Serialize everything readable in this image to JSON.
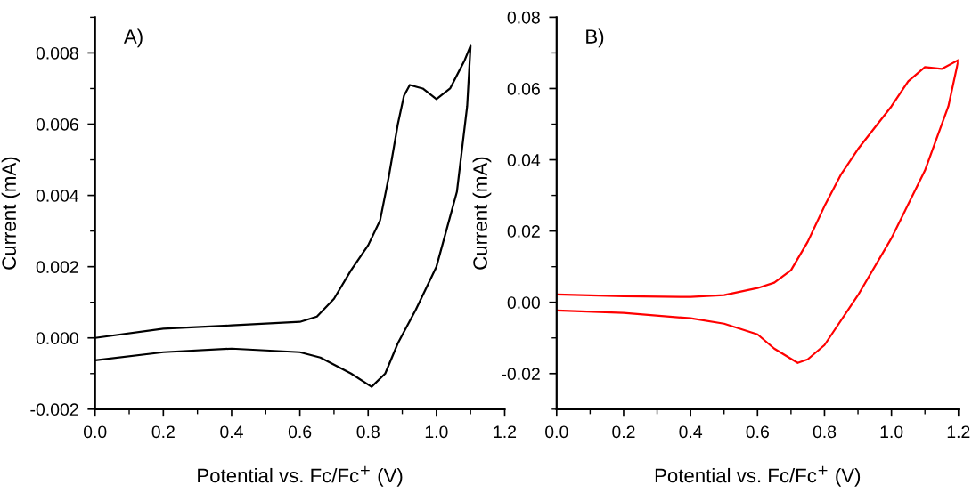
{
  "chart_data": [
    {
      "type": "line",
      "xlabel": "Potential vs. Fc/Fc$^{+}$ (V)",
      "ylabel": "Current (mA)",
      "annotations": [
        "A)"
      ],
      "xlim": [
        0,
        1.2
      ],
      "xticks": [
        {
          "value": 0,
          "label": "0.0"
        },
        0.2,
        0.4,
        0.6,
        0.8,
        {
          "value": 1.0,
          "label": "1.0"
        },
        {
          "value": 1.2,
          "label": "1.2"
        }
      ],
      "ylim": [
        -0.002,
        0.009
      ],
      "yticks": [
        {
          "value": -0.002,
          "label": "-0.002"
        },
        {
          "value": 0,
          "label": "0.000"
        },
        {
          "value": 0.002,
          "label": "0.002"
        },
        {
          "value": 0.004,
          "label": "0.004"
        },
        {
          "value": 0.006,
          "label": "0.006"
        },
        {
          "value": 0.008,
          "label": "0.008"
        }
      ],
      "grid": false,
      "legend": false,
      "series": [
        {
          "color": "#000000",
          "x": [
            0,
            0.2,
            0.4,
            0.6,
            0.65,
            0.7,
            0.75,
            0.8,
            0.835,
            0.86,
            0.887,
            0.905,
            0.922,
            0.96,
            1.0,
            1.04,
            1.083,
            1.1,
            1.09,
            1.06,
            1.0,
            0.94,
            0.887,
            0.85,
            0.81,
            0.75,
            0.66,
            0.6,
            0.4,
            0.2,
            0
          ],
          "values": [
            0,
            0.00026,
            0.00035,
            0.00045,
            0.0006,
            0.0011,
            0.0019,
            0.0026,
            0.0033,
            0.0045,
            0.006,
            0.0068,
            0.0071,
            0.007,
            0.0067,
            0.007,
            0.0078,
            0.0082,
            0.0065,
            0.0041,
            0.002,
            0.0008,
            -0.00015,
            -0.001,
            -0.00137,
            -0.001,
            -0.00055,
            -0.0004,
            -0.0003,
            -0.0004,
            -0.00063
          ]
        }
      ]
    },
    {
      "type": "line",
      "xlabel": "Potential vs. Fc/Fc$^{+}$ (V)",
      "ylabel": "Current (mA)",
      "annotations": [
        "B)"
      ],
      "xlim": [
        0,
        1.2
      ],
      "xticks": [
        {
          "value": 0,
          "label": "0.0"
        },
        0.2,
        0.4,
        0.6,
        0.8,
        {
          "value": 1.0,
          "label": "1.0"
        },
        {
          "value": 1.2,
          "label": "1.2"
        }
      ],
      "ylim": [
        -0.03,
        0.08
      ],
      "yticks": [
        {
          "value": -0.02,
          "label": "-0.02"
        },
        {
          "value": 0,
          "label": "0.00"
        },
        0.02,
        0.04,
        0.06,
        0.08
      ],
      "grid": false,
      "legend": false,
      "series": [
        {
          "color": "#ff0000",
          "x": [
            0,
            0.2,
            0.4,
            0.5,
            0.6,
            0.65,
            0.7,
            0.75,
            0.8,
            0.85,
            0.9,
            0.95,
            1.0,
            1.05,
            1.1,
            1.15,
            1.2,
            1.17,
            1.1,
            1.0,
            0.9,
            0.8,
            0.75,
            0.72,
            0.65,
            0.6,
            0.5,
            0.4,
            0.2,
            0
          ],
          "values": [
            0.0022,
            0.0017,
            0.0015,
            0.002,
            0.004,
            0.0055,
            0.009,
            0.017,
            0.027,
            0.036,
            0.043,
            0.049,
            0.055,
            0.062,
            0.066,
            0.0655,
            0.068,
            0.055,
            0.037,
            0.018,
            0.002,
            -0.012,
            -0.016,
            -0.017,
            -0.013,
            -0.009,
            -0.006,
            -0.0045,
            -0.003,
            -0.0023
          ]
        }
      ]
    }
  ]
}
